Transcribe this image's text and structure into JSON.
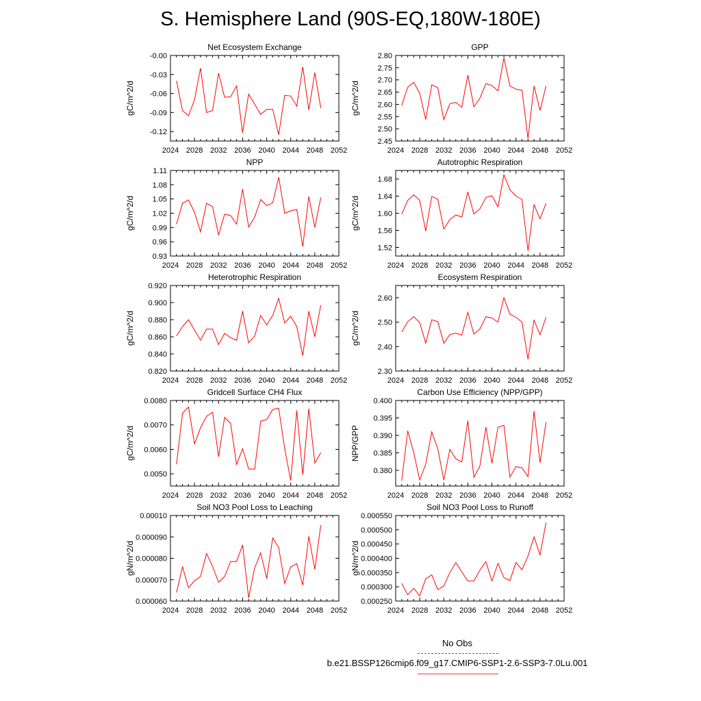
{
  "title": "S. Hemisphere Land (90S-EQ,180W-180E)",
  "legend": {
    "obs_label": "No Obs",
    "obs_color": "#4b4bd6",
    "case_label": "b.e21.BSSP126cmip6.f09_g17.CMIP6-SSP1-2.6-SSP3-7.0Lu.001",
    "case_color": "#e43a3a"
  },
  "chart_data": [
    {
      "type": "line",
      "title": "Net Ecosystem Exchange",
      "ylabel": "gC/m^2/d",
      "xlim": [
        2024,
        2052
      ],
      "xticks": [
        "2024",
        "2028",
        "2032",
        "2036",
        "2040",
        "2044",
        "2048",
        "2052"
      ],
      "ylim": [
        -0.135,
        0.0
      ],
      "yticks": [
        "-0.00",
        "-0.03",
        "-0.06",
        "-0.09",
        "-0.12"
      ],
      "series": [
        {
          "color": "#ff0000",
          "x": [
            2025,
            2026,
            2027,
            2028,
            2029,
            2030,
            2031,
            2032,
            2033,
            2034,
            2035,
            2036,
            2037,
            2038,
            2039,
            2040,
            2041,
            2042,
            2043,
            2044,
            2045,
            2046,
            2047,
            2048,
            2049
          ],
          "values": [
            -0.04,
            -0.087,
            -0.095,
            -0.07,
            -0.02,
            -0.09,
            -0.087,
            -0.028,
            -0.066,
            -0.065,
            -0.048,
            -0.122,
            -0.061,
            -0.077,
            -0.093,
            -0.085,
            -0.085,
            -0.125,
            -0.063,
            -0.064,
            -0.08,
            -0.018,
            -0.086,
            -0.027,
            -0.083
          ]
        }
      ]
    },
    {
      "type": "line",
      "title": "GPP",
      "ylabel": "gC/m^2/d",
      "xlim": [
        2024,
        2052
      ],
      "xticks": [
        "2024",
        "2028",
        "2032",
        "2036",
        "2040",
        "2044",
        "2048",
        "2052"
      ],
      "ylim": [
        2.45,
        2.8
      ],
      "yticks": [
        "2.80",
        "2.75",
        "2.70",
        "2.65",
        "2.60",
        "2.55",
        "2.50",
        "2.45"
      ],
      "series": [
        {
          "color": "#ff0000",
          "x": [
            2025,
            2026,
            2027,
            2028,
            2029,
            2030,
            2031,
            2032,
            2033,
            2034,
            2035,
            2036,
            2037,
            2038,
            2039,
            2040,
            2041,
            2042,
            2043,
            2044,
            2045,
            2046,
            2047,
            2048,
            2049
          ],
          "values": [
            2.595,
            2.67,
            2.69,
            2.645,
            2.538,
            2.68,
            2.668,
            2.537,
            2.603,
            2.608,
            2.588,
            2.72,
            2.59,
            2.625,
            2.685,
            2.677,
            2.655,
            2.79,
            2.675,
            2.662,
            2.658,
            2.46,
            2.675,
            2.575,
            2.675
          ]
        }
      ]
    },
    {
      "type": "line",
      "title": "NPP",
      "ylabel": "gC/m^2/d",
      "xlim": [
        2024,
        2052
      ],
      "xticks": [
        "2024",
        "2028",
        "2032",
        "2036",
        "2040",
        "2044",
        "2048",
        "2052"
      ],
      "ylim": [
        0.93,
        1.11
      ],
      "yticks": [
        "1.11",
        "1.08",
        "1.05",
        "1.02",
        "0.99",
        "0.96",
        "0.93"
      ],
      "series": [
        {
          "color": "#ff0000",
          "x": [
            2025,
            2026,
            2027,
            2028,
            2029,
            2030,
            2031,
            2032,
            2033,
            2034,
            2035,
            2036,
            2037,
            2038,
            2039,
            2040,
            2041,
            2042,
            2043,
            2044,
            2045,
            2046,
            2047,
            2048,
            2049
          ],
          "values": [
            0.997,
            1.041,
            1.048,
            1.022,
            0.981,
            1.041,
            1.034,
            0.974,
            1.018,
            1.015,
            0.997,
            1.071,
            0.991,
            1.012,
            1.049,
            1.036,
            1.042,
            1.096,
            1.02,
            1.025,
            1.028,
            0.95,
            1.055,
            0.99,
            1.053
          ]
        }
      ]
    },
    {
      "type": "line",
      "title": "Autotrophic Respiration",
      "ylabel": "gC/m^2/d",
      "xlim": [
        2024,
        2052
      ],
      "xticks": [
        "2024",
        "2028",
        "2032",
        "2036",
        "2040",
        "2044",
        "2048",
        "2052"
      ],
      "ylim": [
        1.5,
        1.7
      ],
      "yticks": [
        "1.68",
        "1.64",
        "1.60",
        "1.56",
        "1.52"
      ],
      "series": [
        {
          "color": "#ff0000",
          "x": [
            2025,
            2026,
            2027,
            2028,
            2029,
            2030,
            2031,
            2032,
            2033,
            2034,
            2035,
            2036,
            2037,
            2038,
            2039,
            2040,
            2041,
            2042,
            2043,
            2044,
            2045,
            2046,
            2047,
            2048,
            2049
          ],
          "values": [
            1.598,
            1.63,
            1.643,
            1.63,
            1.558,
            1.639,
            1.633,
            1.563,
            1.585,
            1.596,
            1.591,
            1.65,
            1.598,
            1.61,
            1.637,
            1.641,
            1.615,
            1.69,
            1.655,
            1.64,
            1.632,
            1.512,
            1.62,
            1.587,
            1.623
          ]
        }
      ]
    },
    {
      "type": "line",
      "title": "Heterotrophic Respiration",
      "ylabel": "gC/m^2/d",
      "xlim": [
        2024,
        2052
      ],
      "xticks": [
        "2024",
        "2028",
        "2032",
        "2036",
        "2040",
        "2044",
        "2048",
        "2052"
      ],
      "ylim": [
        0.82,
        0.92
      ],
      "yticks": [
        "0.920",
        "0.900",
        "0.880",
        "0.860",
        "0.840",
        "0.820"
      ],
      "series": [
        {
          "color": "#ff0000",
          "x": [
            2025,
            2026,
            2027,
            2028,
            2029,
            2030,
            2031,
            2032,
            2033,
            2034,
            2035,
            2036,
            2037,
            2038,
            2039,
            2040,
            2041,
            2042,
            2043,
            2044,
            2045,
            2046,
            2047,
            2048,
            2049
          ],
          "values": [
            0.861,
            0.872,
            0.88,
            0.868,
            0.856,
            0.869,
            0.869,
            0.851,
            0.864,
            0.859,
            0.856,
            0.89,
            0.853,
            0.861,
            0.885,
            0.874,
            0.885,
            0.905,
            0.876,
            0.884,
            0.872,
            0.838,
            0.89,
            0.86,
            0.897
          ]
        }
      ]
    },
    {
      "type": "line",
      "title": "Ecosystem Respiration",
      "ylabel": "gC/m^2/d",
      "xlim": [
        2024,
        2052
      ],
      "xticks": [
        "2024",
        "2028",
        "2032",
        "2036",
        "2040",
        "2044",
        "2048",
        "2052"
      ],
      "ylim": [
        2.3,
        2.65
      ],
      "yticks": [
        "2.60",
        "2.50",
        "2.40",
        "2.30"
      ],
      "series": [
        {
          "color": "#ff0000",
          "x": [
            2025,
            2026,
            2027,
            2028,
            2029,
            2030,
            2031,
            2032,
            2033,
            2034,
            2035,
            2036,
            2037,
            2038,
            2039,
            2040,
            2041,
            2042,
            2043,
            2044,
            2045,
            2046,
            2047,
            2048,
            2049
          ],
          "values": [
            2.46,
            2.502,
            2.522,
            2.498,
            2.414,
            2.51,
            2.502,
            2.414,
            2.449,
            2.455,
            2.447,
            2.54,
            2.451,
            2.472,
            2.522,
            2.517,
            2.5,
            2.6,
            2.532,
            2.52,
            2.5,
            2.348,
            2.508,
            2.448,
            2.52
          ]
        }
      ]
    },
    {
      "type": "line",
      "title": "Gridcell Surface CH4 Flux",
      "ylabel": "gC/m^2/d",
      "xlim": [
        2024,
        2052
      ],
      "xticks": [
        "2024",
        "2028",
        "2032",
        "2036",
        "2040",
        "2044",
        "2048",
        "2052"
      ],
      "ylim": [
        0.0045,
        0.008
      ],
      "yticks": [
        "0.0080",
        "0.0070",
        "0.0060",
        "0.0050"
      ],
      "series": [
        {
          "color": "#ff0000",
          "x": [
            2025,
            2026,
            2027,
            2028,
            2029,
            2030,
            2031,
            2032,
            2033,
            2034,
            2035,
            2036,
            2037,
            2038,
            2039,
            2040,
            2041,
            2042,
            2043,
            2044,
            2045,
            2046,
            2047,
            2048,
            2049
          ],
          "values": [
            0.00539,
            0.00748,
            0.00773,
            0.00623,
            0.00688,
            0.00735,
            0.00752,
            0.0057,
            0.00731,
            0.00706,
            0.00538,
            0.00603,
            0.0052,
            0.00519,
            0.00716,
            0.00722,
            0.00763,
            0.00769,
            0.00602,
            0.00472,
            0.00759,
            0.00496,
            0.00766,
            0.00544,
            0.00587
          ]
        }
      ]
    },
    {
      "type": "line",
      "title": "Carbon Use Efficiency (NPP/GPP)",
      "ylabel": "NPP/GPP",
      "xlim": [
        2024,
        2052
      ],
      "xticks": [
        "2024",
        "2028",
        "2032",
        "2036",
        "2040",
        "2044",
        "2048",
        "2052"
      ],
      "ylim": [
        0.3755,
        0.4
      ],
      "yticks": [
        "0.400",
        "0.395",
        "0.390",
        "0.385",
        "0.380"
      ],
      "series": [
        {
          "color": "#ff0000",
          "x": [
            2025,
            2026,
            2027,
            2028,
            2029,
            2030,
            2031,
            2032,
            2033,
            2034,
            2035,
            2036,
            2037,
            2038,
            2039,
            2040,
            2041,
            2042,
            2043,
            2044,
            2045,
            2046,
            2047,
            2048,
            2049
          ],
          "values": [
            0.377,
            0.3913,
            0.385,
            0.3772,
            0.3818,
            0.391,
            0.3862,
            0.3772,
            0.386,
            0.3833,
            0.3824,
            0.3942,
            0.378,
            0.3812,
            0.3924,
            0.382,
            0.3923,
            0.3929,
            0.378,
            0.3811,
            0.3807,
            0.3782,
            0.397,
            0.3822,
            0.3938
          ]
        }
      ]
    },
    {
      "type": "line",
      "title": "Soil NO3 Pool Loss to Leaching",
      "ylabel": "gN/m^2/d",
      "xlim": [
        2024,
        2052
      ],
      "xticks": [
        "2024",
        "2028",
        "2032",
        "2036",
        "2040",
        "2044",
        "2048",
        "2052"
      ],
      "ylim": [
        6e-05,
        0.0001
      ],
      "yticks": [
        "0.00010",
        "0.000090",
        "0.000080",
        "0.000070",
        "0.000060"
      ],
      "series": [
        {
          "color": "#ff0000",
          "x": [
            2025,
            2026,
            2027,
            2028,
            2029,
            2030,
            2031,
            2032,
            2033,
            2034,
            2035,
            2036,
            2037,
            2038,
            2039,
            2040,
            2041,
            2042,
            2043,
            2044,
            2045,
            2046,
            2047,
            2048,
            2049
          ],
          "values": [
            6.4e-05,
            7.6e-05,
            6.62e-05,
            6.95e-05,
            7.15e-05,
            8.22e-05,
            7.62e-05,
            6.88e-05,
            7.15e-05,
            7.85e-05,
            7.85e-05,
            8.62e-05,
            6.15e-05,
            7.55e-05,
            8.25e-05,
            7.05e-05,
            8.95e-05,
            8.5e-05,
            6.82e-05,
            7.6e-05,
            7.75e-05,
            6.75e-05,
            9.02e-05,
            7.48e-05,
            9.55e-05
          ]
        }
      ]
    },
    {
      "type": "line",
      "title": "Soil NO3 Pool Loss to Runoff",
      "ylabel": "gN/m^2/d",
      "xlim": [
        2024,
        2052
      ],
      "xticks": [
        "2024",
        "2028",
        "2032",
        "2036",
        "2040",
        "2044",
        "2048",
        "2052"
      ],
      "ylim": [
        0.00025,
        0.00055
      ],
      "yticks": [
        "0.000550",
        "0.000500",
        "0.000450",
        "0.000400",
        "0.000350",
        "0.000300",
        "0.000250"
      ],
      "series": [
        {
          "color": "#ff0000",
          "x": [
            2025,
            2026,
            2027,
            2028,
            2029,
            2030,
            2031,
            2032,
            2033,
            2034,
            2035,
            2036,
            2037,
            2038,
            2039,
            2040,
            2041,
            2042,
            2043,
            2044,
            2045,
            2046,
            2047,
            2048,
            2049
          ],
          "values": [
            0.000312,
            0.000272,
            0.000295,
            0.000268,
            0.000328,
            0.000342,
            0.00029,
            0.000303,
            0.00035,
            0.000385,
            0.000352,
            0.00032,
            0.00032,
            0.000358,
            0.000388,
            0.00032,
            0.000382,
            0.000332,
            0.000322,
            0.000385,
            0.00036,
            0.000408,
            0.000475,
            0.000412,
            0.000525
          ]
        }
      ]
    }
  ]
}
